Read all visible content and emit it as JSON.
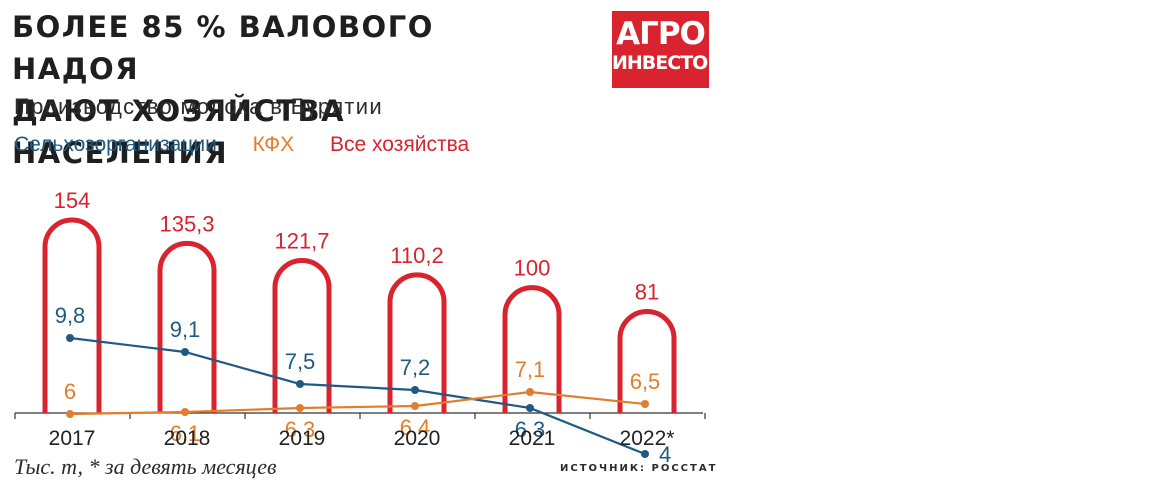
{
  "title_line1": "БОЛЕЕ 85 % ВАЛОВОГО НАДОЯ",
  "title_line2": "ДАЮТ ХОЗЯЙСТВА НАСЕЛЕНИЯ",
  "subtitle": "Производство молока в Бурятии",
  "logo": {
    "line1": "АГРО",
    "line2": "ИНВЕСТОР"
  },
  "footnote": "Тыс. т, * за девять месяцев",
  "source": "ИСТОЧНИК: РОССТАТ",
  "colors": {
    "all": "#d9232e",
    "org": "#1f5b80",
    "kfh": "#e07e2c",
    "text": "#2b2b2b"
  },
  "chart_data": {
    "type": "bar",
    "categories": [
      "2017",
      "2018",
      "2019",
      "2020",
      "2021",
      "2022*"
    ],
    "series": [
      {
        "name": "Все хозяйства",
        "style": "arch-bar",
        "values": [
          154,
          135.3,
          121.7,
          110.2,
          100,
          81
        ],
        "labels": [
          "154",
          "135,3",
          "121,7",
          "110,2",
          "100",
          "81"
        ]
      },
      {
        "name": "Сельхозорганизации",
        "style": "line",
        "values": [
          9.8,
          9.1,
          7.5,
          7.2,
          6.3,
          4
        ],
        "labels": [
          "9,8",
          "9,1",
          "7,5",
          "7,2",
          "6,3",
          "4"
        ]
      },
      {
        "name": "КФХ",
        "style": "line",
        "values": [
          6,
          6.1,
          6.3,
          6.4,
          7.1,
          6.5
        ],
        "labels": [
          "6",
          "6,1",
          "6,3",
          "6,4",
          "7,1",
          "6,5"
        ]
      }
    ]
  }
}
